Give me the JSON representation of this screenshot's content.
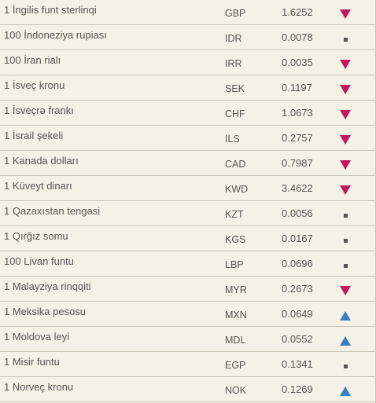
{
  "rates": [
    {
      "name": "1 İngilis funt sterlinqi",
      "code": "GBP",
      "rate": "1.6252",
      "trend": "down"
    },
    {
      "name": "100 İndoneziya rupiası",
      "code": "IDR",
      "rate": "0.0078",
      "trend": "same"
    },
    {
      "name": "100 İran rialı",
      "code": "IRR",
      "rate": "0.0035",
      "trend": "down"
    },
    {
      "name": "1 İsveç kronu",
      "code": "SEK",
      "rate": "0.1197",
      "trend": "down"
    },
    {
      "name": "1 İsveçrə frankı",
      "code": "CHF",
      "rate": "1.0673",
      "trend": "down"
    },
    {
      "name": "1 İsrail şekeli",
      "code": "ILS",
      "rate": "0.2757",
      "trend": "down"
    },
    {
      "name": "1 Kanada dolları",
      "code": "CAD",
      "rate": "0.7987",
      "trend": "down"
    },
    {
      "name": "1 Küveyt dinarı",
      "code": "KWD",
      "rate": "3.4622",
      "trend": "down"
    },
    {
      "name": "1 Qazaxıstan tengəsi",
      "code": "KZT",
      "rate": "0.0056",
      "trend": "same"
    },
    {
      "name": "1 Qırğız somu",
      "code": "KGS",
      "rate": "0.0167",
      "trend": "same"
    },
    {
      "name": "100 Livan funtu",
      "code": "LBP",
      "rate": "0.0696",
      "trend": "same"
    },
    {
      "name": "1 Malayziya rinqqiti",
      "code": "MYR",
      "rate": "0.2673",
      "trend": "down"
    },
    {
      "name": "1 Meksika pesosu",
      "code": "MXN",
      "rate": "0.0649",
      "trend": "up"
    },
    {
      "name": "1 Moldova leyi",
      "code": "MDL",
      "rate": "0.0552",
      "trend": "up"
    },
    {
      "name": "1 Misir funtu",
      "code": "EGP",
      "rate": "0.1341",
      "trend": "same"
    },
    {
      "name": "1 Norveç kronu",
      "code": "NOK",
      "rate": "0.1269",
      "trend": "up"
    }
  ],
  "colors": {
    "background": "#f4f1e6",
    "divider": "#c9c4b4",
    "down": "#c2185b",
    "up": "#3a7fc1",
    "same": "#555555"
  }
}
